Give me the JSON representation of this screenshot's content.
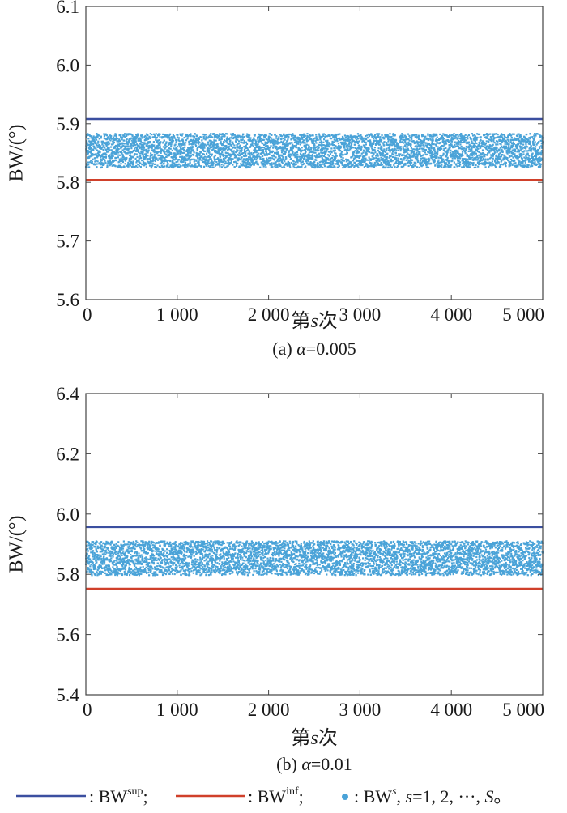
{
  "chart_data": [
    {
      "type": "scatter",
      "id": "a",
      "caption_prefix": "(a) ",
      "caption_var": "α",
      "caption_value": "=0.005",
      "xlabel_main": "第",
      "xlabel_var": "s",
      "xlabel_tail": "次",
      "ylabel": "BW/(°)",
      "xlim": [
        0,
        5000
      ],
      "ylim": [
        5.6,
        6.1
      ],
      "xticks": [
        0,
        1000,
        2000,
        3000,
        4000,
        5000
      ],
      "xtick_labels": [
        "0",
        "1 000",
        "2 000",
        "3 000",
        "4 000",
        "5 000"
      ],
      "yticks": [
        5.6,
        5.7,
        5.8,
        5.9,
        6.0,
        6.1
      ],
      "ytick_labels": [
        "5.6",
        "5.7",
        "5.8",
        "5.9",
        "6.0",
        "6.1"
      ],
      "grid": false,
      "series": [
        {
          "kind": "line",
          "level": 5.908,
          "color": "#3b4fa0"
        },
        {
          "kind": "line",
          "level": 5.804,
          "color": "#d0402a"
        },
        {
          "kind": "points",
          "count": 5000,
          "y_range": [
            5.825,
            5.883
          ],
          "color": "#4aa3d8"
        }
      ]
    },
    {
      "type": "scatter",
      "id": "b",
      "caption_prefix": "(b) ",
      "caption_var": "α",
      "caption_value": "=0.01",
      "xlabel_main": "第",
      "xlabel_var": "s",
      "xlabel_tail": "次",
      "ylabel": "BW/(°)",
      "xlim": [
        0,
        5000
      ],
      "ylim": [
        5.4,
        6.4
      ],
      "xticks": [
        0,
        1000,
        2000,
        3000,
        4000,
        5000
      ],
      "xtick_labels": [
        "0",
        "1 000",
        "2 000",
        "3 000",
        "4 000",
        "5 000"
      ],
      "yticks": [
        5.4,
        5.6,
        5.8,
        6.0,
        6.2,
        6.4
      ],
      "ytick_labels": [
        "5.4",
        "5.6",
        "5.8",
        "6.0",
        "6.2",
        "6.4"
      ],
      "grid": false,
      "series": [
        {
          "kind": "line",
          "level": 5.957,
          "color": "#3b4fa0"
        },
        {
          "kind": "line",
          "level": 5.752,
          "color": "#d0402a"
        },
        {
          "kind": "points",
          "count": 5000,
          "y_range": [
            5.797,
            5.91
          ],
          "color": "#4aa3d8"
        }
      ]
    }
  ],
  "legend": {
    "sup": {
      "sep": ": ",
      "base": "BW",
      "sup": "sup",
      "tail": ";"
    },
    "inf": {
      "sep": ": ",
      "base": "BW",
      "sup": "inf",
      "tail": ";"
    },
    "pts": {
      "sep": ": ",
      "base": "BW",
      "sup": "s",
      "tail_a": ", ",
      "tail_var": "s",
      "tail_b": "=1, 2, ···, ",
      "tail_end": "S",
      "tail_dot": "。"
    }
  },
  "colors": {
    "upper": "#3b4fa0",
    "lower": "#d0402a",
    "points": "#4aa3d8",
    "axis": "#444444"
  }
}
